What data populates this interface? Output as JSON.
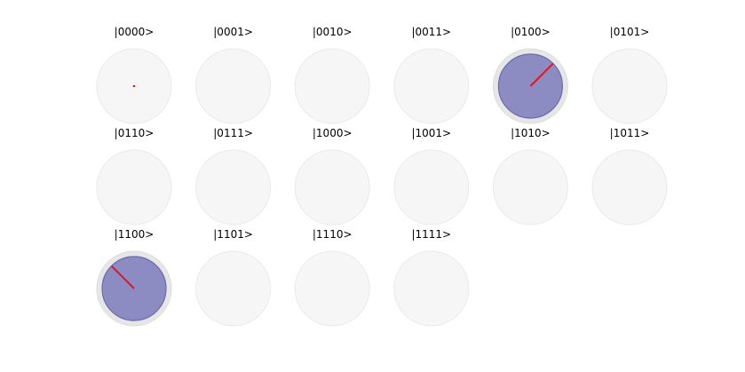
{
  "figure": {
    "layout": {
      "columns": 6,
      "rows": 3
    },
    "colors": {
      "outer_ring": "#e6e6e6",
      "outer_ring_stroke": "#dcdcdc",
      "empty_disc": "#f6f6f6",
      "empty_disc_stroke": "#e9e9e9",
      "amplitude_disc": "#8c8cc2",
      "amplitude_disc_stroke": "#6a6ab0",
      "phase_line": "#e8121a"
    },
    "states": [
      {
        "label": "|0000>",
        "amplitude": 0.0,
        "phase_deg": 0
      },
      {
        "label": "|0001>",
        "amplitude": 0.0,
        "phase_deg": 0
      },
      {
        "label": "|0010>",
        "amplitude": 0.0,
        "phase_deg": 0
      },
      {
        "label": "|0011>",
        "amplitude": 0.0,
        "phase_deg": 0
      },
      {
        "label": "|0100>",
        "amplitude": 0.707,
        "phase_deg": 45
      },
      {
        "label": "|0101>",
        "amplitude": 0.0,
        "phase_deg": 0
      },
      {
        "label": "|0110>",
        "amplitude": 0.0,
        "phase_deg": 0
      },
      {
        "label": "|0111>",
        "amplitude": 0.0,
        "phase_deg": 0
      },
      {
        "label": "|1000>",
        "amplitude": 0.0,
        "phase_deg": 0
      },
      {
        "label": "|1001>",
        "amplitude": 0.0,
        "phase_deg": 0
      },
      {
        "label": "|1010>",
        "amplitude": 0.0,
        "phase_deg": 0
      },
      {
        "label": "|1011>",
        "amplitude": 0.0,
        "phase_deg": 0
      },
      {
        "label": "|1100>",
        "amplitude": 0.707,
        "phase_deg": 135
      },
      {
        "label": "|1101>",
        "amplitude": 0.0,
        "phase_deg": 0
      },
      {
        "label": "|1110>",
        "amplitude": 0.0,
        "phase_deg": 0
      },
      {
        "label": "|1111>",
        "amplitude": 0.0,
        "phase_deg": 0
      }
    ]
  }
}
